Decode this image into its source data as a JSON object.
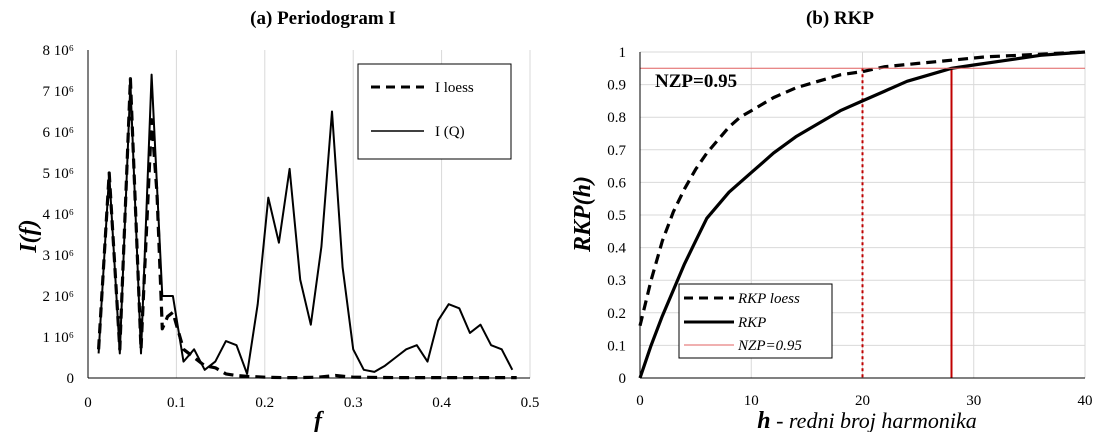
{
  "chart_data": [
    {
      "type": "line",
      "title": "(a) Periodogram I",
      "xlabel": "f",
      "ylabel": "I(f)",
      "xlim": [
        0,
        0.5
      ],
      "ylim": [
        0,
        8000000
      ],
      "x_ticks": [
        "0",
        "0.1",
        "0.2",
        "0.3",
        "0.4",
        "0.5"
      ],
      "y_ticks": [
        "0",
        "1 10⁶",
        "2 10⁶",
        "3 10⁶",
        "4 10⁶",
        "5 10⁶",
        "6 10⁶",
        "7 10⁶",
        "8 10⁶"
      ],
      "grid": "vertical",
      "legend_position": "top-right",
      "series": [
        {
          "name": "I loess",
          "style": "dashed",
          "color": "#000000",
          "points": [
            [
              0.012,
              700000
            ],
            [
              0.024,
              5000000
            ],
            [
              0.036,
              700000
            ],
            [
              0.048,
              7300000
            ],
            [
              0.06,
              700000
            ],
            [
              0.072,
              6300000
            ],
            [
              0.078,
              4500000
            ],
            [
              0.084,
              1200000
            ],
            [
              0.09,
              1500000
            ],
            [
              0.096,
              1600000
            ],
            [
              0.1,
              1300000
            ],
            [
              0.108,
              700000
            ],
            [
              0.12,
              500000
            ],
            [
              0.132,
              300000
            ],
            [
              0.144,
              250000
            ],
            [
              0.156,
              100000
            ],
            [
              0.168,
              60000
            ],
            [
              0.18,
              40000
            ],
            [
              0.2,
              20000
            ],
            [
              0.22,
              10000
            ],
            [
              0.24,
              10000
            ],
            [
              0.26,
              20000
            ],
            [
              0.28,
              60000
            ],
            [
              0.3,
              20000
            ],
            [
              0.35,
              10000
            ],
            [
              0.4,
              10000
            ],
            [
              0.45,
              10000
            ],
            [
              0.485,
              10000
            ]
          ]
        },
        {
          "name": "I (Q)",
          "style": "solid",
          "color": "#000000",
          "points": [
            [
              0.012,
              600000
            ],
            [
              0.024,
              5000000
            ],
            [
              0.036,
              600000
            ],
            [
              0.048,
              7200000
            ],
            [
              0.06,
              600000
            ],
            [
              0.072,
              7400000
            ],
            [
              0.084,
              2000000
            ],
            [
              0.096,
              2000000
            ],
            [
              0.108,
              400000
            ],
            [
              0.12,
              700000
            ],
            [
              0.132,
              200000
            ],
            [
              0.144,
              400000
            ],
            [
              0.156,
              900000
            ],
            [
              0.168,
              800000
            ],
            [
              0.18,
              100000
            ],
            [
              0.192,
              1800000
            ],
            [
              0.204,
              4400000
            ],
            [
              0.216,
              3300000
            ],
            [
              0.228,
              5100000
            ],
            [
              0.24,
              2400000
            ],
            [
              0.252,
              1300000
            ],
            [
              0.264,
              3200000
            ],
            [
              0.276,
              6500000
            ],
            [
              0.288,
              2700000
            ],
            [
              0.3,
              700000
            ],
            [
              0.312,
              200000
            ],
            [
              0.324,
              150000
            ],
            [
              0.336,
              300000
            ],
            [
              0.348,
              500000
            ],
            [
              0.36,
              700000
            ],
            [
              0.372,
              800000
            ],
            [
              0.384,
              400000
            ],
            [
              0.396,
              1400000
            ],
            [
              0.408,
              1800000
            ],
            [
              0.42,
              1700000
            ],
            [
              0.432,
              1100000
            ],
            [
              0.444,
              1300000
            ],
            [
              0.456,
              800000
            ],
            [
              0.468,
              700000
            ],
            [
              0.48,
              200000
            ]
          ]
        }
      ]
    },
    {
      "type": "line",
      "title": "(b) RKP",
      "xlabel_bold": "h",
      "xlabel_rest": " - redni broj harmonika",
      "ylabel": "RKP(h)",
      "xlim": [
        0,
        40
      ],
      "ylim": [
        0,
        1
      ],
      "x_ticks": [
        "0",
        "10",
        "20",
        "30",
        "40"
      ],
      "y_ticks": [
        "0",
        "0.1",
        "0.2",
        "0.3",
        "0.4",
        "0.5",
        "0.6",
        "0.7",
        "0.8",
        "0.9",
        "1"
      ],
      "grid": "both",
      "legend_position": "bottom-left",
      "annotation": "NZP=0.95",
      "series": [
        {
          "name": "RKP loess",
          "style": "dashed",
          "color": "#000000",
          "points": [
            [
              0,
              0.16
            ],
            [
              1,
              0.3
            ],
            [
              2,
              0.42
            ],
            [
              3,
              0.51
            ],
            [
              4,
              0.58
            ],
            [
              5,
              0.64
            ],
            [
              6,
              0.69
            ],
            [
              7,
              0.73
            ],
            [
              8,
              0.77
            ],
            [
              9,
              0.8
            ],
            [
              10,
              0.82
            ],
            [
              12,
              0.86
            ],
            [
              14,
              0.89
            ],
            [
              16,
              0.91
            ],
            [
              18,
              0.93
            ],
            [
              20,
              0.94
            ],
            [
              22,
              0.955
            ],
            [
              25,
              0.965
            ],
            [
              28,
              0.975
            ],
            [
              31,
              0.985
            ],
            [
              34,
              0.99
            ],
            [
              37,
              0.995
            ],
            [
              40,
              1.0
            ]
          ]
        },
        {
          "name": "RKP",
          "style": "solid",
          "color": "#000000",
          "points": [
            [
              0,
              0.0
            ],
            [
              1,
              0.1
            ],
            [
              2,
              0.19
            ],
            [
              3,
              0.27
            ],
            [
              4,
              0.35
            ],
            [
              5,
              0.42
            ],
            [
              6,
              0.49
            ],
            [
              8,
              0.57
            ],
            [
              10,
              0.63
            ],
            [
              12,
              0.69
            ],
            [
              14,
              0.74
            ],
            [
              16,
              0.78
            ],
            [
              18,
              0.82
            ],
            [
              20,
              0.85
            ],
            [
              22,
              0.88
            ],
            [
              24,
              0.91
            ],
            [
              26,
              0.93
            ],
            [
              28,
              0.95
            ],
            [
              30,
              0.96
            ],
            [
              33,
              0.975
            ],
            [
              36,
              0.99
            ],
            [
              38,
              0.995
            ],
            [
              40,
              1.0
            ]
          ]
        },
        {
          "name": "NZP=0.95",
          "style": "thin",
          "color": "#e06060",
          "points": [
            [
              0,
              0.95
            ],
            [
              40,
              0.95
            ]
          ]
        }
      ],
      "markers": [
        {
          "x": 20,
          "y": 0.95,
          "style": "dotted",
          "color": "#c00000"
        },
        {
          "x": 28,
          "y": 0.95,
          "style": "solid",
          "color": "#c00000"
        }
      ]
    }
  ]
}
